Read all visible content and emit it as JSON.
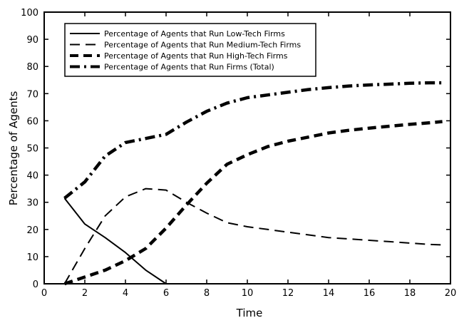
{
  "chart_data": {
    "type": "line",
    "title": "",
    "xlabel": "Time",
    "ylabel": "Percentage of Agents",
    "xlim": [
      0,
      20
    ],
    "ylim": [
      0,
      100
    ],
    "xticks": [
      0,
      2,
      4,
      6,
      8,
      10,
      12,
      14,
      16,
      18,
      20
    ],
    "yticks": [
      0,
      10,
      20,
      30,
      40,
      50,
      60,
      70,
      80,
      90,
      100
    ],
    "grid": false,
    "legend_position": "top-left",
    "series": [
      {
        "name": "Percentage of Agents that Run Low-Tech Firms",
        "style": "solid",
        "x": [
          1,
          2,
          3,
          4,
          5,
          6,
          7,
          8,
          9,
          10,
          11,
          12,
          13,
          14,
          15,
          16,
          17,
          18,
          19,
          19.6
        ],
        "y": [
          31.5,
          22,
          17,
          11.5,
          5,
          0,
          0,
          0,
          0,
          0,
          0,
          0,
          0,
          0,
          0,
          0,
          0,
          0,
          0,
          0
        ]
      },
      {
        "name": "Percentage of Agents that Run Medium-Tech Firms",
        "style": "dashed",
        "x": [
          1,
          2,
          3,
          4,
          5,
          6,
          7,
          8,
          9,
          10,
          11,
          12,
          13,
          14,
          15,
          16,
          17,
          18,
          19,
          19.6
        ],
        "y": [
          0,
          13,
          25,
          32,
          35,
          34.5,
          30,
          26,
          22.5,
          21,
          20,
          19,
          18,
          17,
          16.5,
          16,
          15.5,
          15,
          14.5,
          14.3
        ]
      },
      {
        "name": "Percentage of Agents that Run High-Tech Firms",
        "style": "thick-dashed",
        "x": [
          1,
          2,
          3,
          4,
          5,
          6,
          7,
          8,
          9,
          10,
          11,
          12,
          13,
          14,
          15,
          16,
          17,
          18,
          19,
          19.6
        ],
        "y": [
          0,
          2.5,
          5,
          8.5,
          13,
          20.5,
          29,
          37,
          44,
          47.5,
          50.5,
          52.5,
          54,
          55.5,
          56.5,
          57.3,
          58,
          58.7,
          59.3,
          59.7
        ]
      },
      {
        "name": "Percentage of Agents that Run Firms (Total)",
        "style": "dash-dot",
        "x": [
          1,
          2,
          3,
          4,
          5,
          6,
          7,
          8,
          9,
          10,
          11,
          12,
          13,
          14,
          15,
          16,
          17,
          18,
          19,
          19.6
        ],
        "y": [
          31.5,
          37.5,
          47,
          52,
          53.5,
          55,
          59.5,
          63.5,
          66.5,
          68.5,
          69.5,
          70.5,
          71.5,
          72.2,
          72.8,
          73.2,
          73.5,
          73.8,
          74,
          74
        ]
      }
    ]
  }
}
